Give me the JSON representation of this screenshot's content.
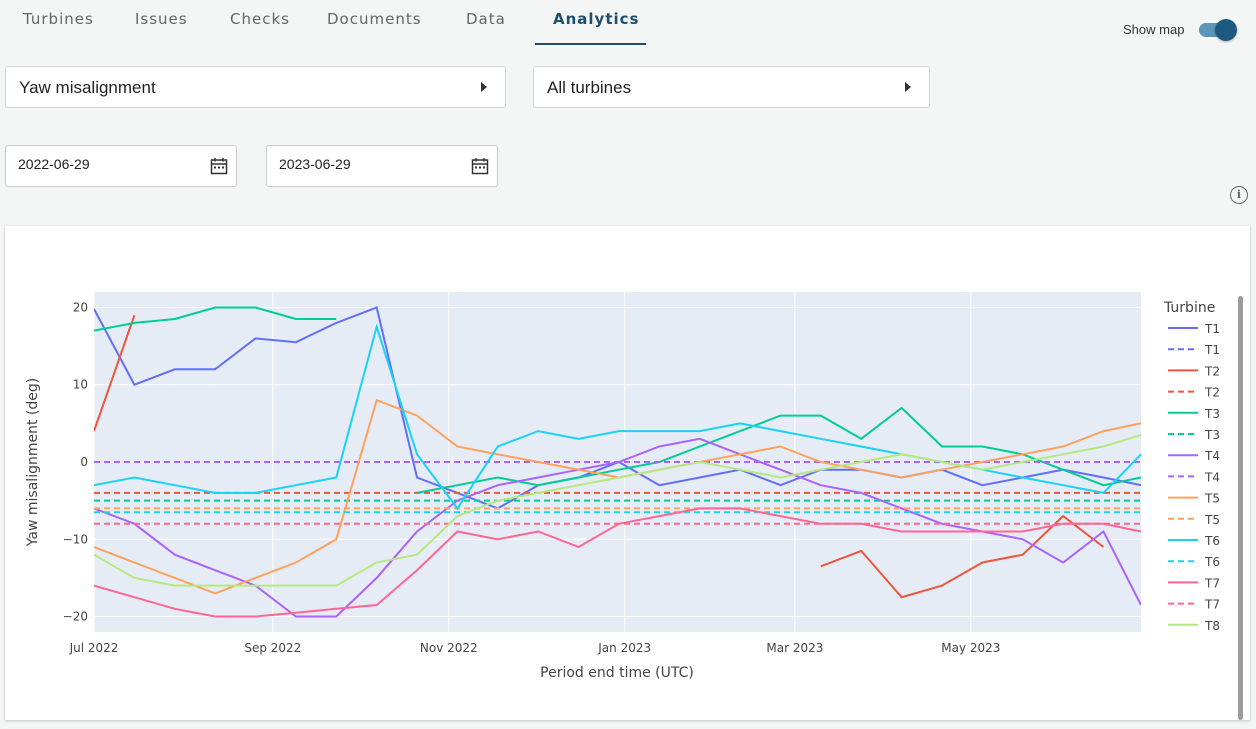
{
  "tabs": [
    {
      "label": "Turbines"
    },
    {
      "label": "Issues"
    },
    {
      "label": "Checks"
    },
    {
      "label": "Documents"
    },
    {
      "label": "Data"
    },
    {
      "label": "Analytics"
    }
  ],
  "active_tab": "Analytics",
  "show_map": {
    "label": "Show map",
    "on": true
  },
  "metric_select": {
    "value": "Yaw misalignment"
  },
  "turbine_select": {
    "value": "All turbines"
  },
  "date_from": "2022-06-29",
  "date_to": "2023-06-29",
  "colors": {
    "accent": "#1e4f6e",
    "plot_bg": "#e5ecf6"
  },
  "chart_data": {
    "type": "line",
    "xlabel": "Period end time (UTC)",
    "ylabel": "Yaw misalignment (deg)",
    "x_ticks": [
      "Jul 2022",
      "Sep 2022",
      "Nov 2022",
      "Jan 2023",
      "Mar 2023",
      "May 2023"
    ],
    "y_ticks": [
      "20",
      "10",
      "0",
      "−10",
      "−20"
    ],
    "ylim": [
      -22,
      22
    ],
    "xlim": [
      "2022-07-01",
      "2023-06-29"
    ],
    "legend_title": "Turbine",
    "legend_position": "right",
    "x": [
      "2022-07-01",
      "2022-07-15",
      "2022-07-29",
      "2022-08-12",
      "2022-08-26",
      "2022-09-09",
      "2022-09-23",
      "2022-10-07",
      "2022-10-21",
      "2022-11-04",
      "2022-11-18",
      "2022-12-02",
      "2022-12-16",
      "2022-12-30",
      "2023-01-13",
      "2023-01-27",
      "2023-02-10",
      "2023-02-24",
      "2023-03-10",
      "2023-03-24",
      "2023-04-07",
      "2023-04-21",
      "2023-05-05",
      "2023-05-19",
      "2023-06-02",
      "2023-06-16",
      "2023-06-29"
    ],
    "series": [
      {
        "name": "T1",
        "dash": "solid",
        "color": "#636efa",
        "values": [
          19.8,
          10,
          12,
          12,
          16,
          15.5,
          18,
          20,
          -2,
          -4,
          -6,
          -3,
          -2,
          0,
          -3,
          -2,
          -1,
          -3,
          -1,
          -1,
          -2,
          -1,
          -3,
          -2,
          -1,
          -2,
          -3
        ]
      },
      {
        "name": "T1",
        "dash": "dash",
        "color": "#636efa",
        "values": [
          0,
          0,
          0,
          0,
          0,
          0,
          0,
          0,
          0,
          0,
          0,
          0,
          0,
          0,
          0,
          0,
          0,
          0,
          0,
          0,
          0,
          0,
          0,
          0,
          0,
          0,
          0
        ]
      },
      {
        "name": "T2",
        "dash": "solid",
        "color": "#ef553b",
        "values": [
          4,
          19,
          null,
          null,
          null,
          null,
          null,
          null,
          null,
          null,
          null,
          null,
          null,
          null,
          null,
          null,
          null,
          null,
          -13.5,
          -11.5,
          -17.5,
          -16,
          -13,
          -12,
          -7,
          -11,
          null
        ]
      },
      {
        "name": "T2",
        "dash": "dash",
        "color": "#ef553b",
        "values": [
          -4,
          -4,
          -4,
          -4,
          -4,
          -4,
          -4,
          -4,
          -4,
          -4,
          -4,
          -4,
          -4,
          -4,
          -4,
          -4,
          -4,
          -4,
          -4,
          -4,
          -4,
          -4,
          -4,
          -4,
          -4,
          -4,
          -4
        ]
      },
      {
        "name": "T3",
        "dash": "solid",
        "color": "#00cc96",
        "values": [
          17,
          18,
          18.5,
          20,
          20,
          18.5,
          18.5,
          null,
          -4,
          -3,
          -2,
          -3,
          -2,
          -1,
          0,
          2,
          4,
          6,
          6,
          3,
          7,
          2,
          2,
          1,
          -1,
          -3,
          -2
        ]
      },
      {
        "name": "T3",
        "dash": "dash",
        "color": "#00cc96",
        "values": [
          -5,
          -5,
          -5,
          -5,
          -5,
          -5,
          -5,
          -5,
          -5,
          -5,
          -5,
          -5,
          -5,
          -5,
          -5,
          -5,
          -5,
          -5,
          -5,
          -5,
          -5,
          -5,
          -5,
          -5,
          -5,
          -5,
          -5
        ]
      },
      {
        "name": "T4",
        "dash": "solid",
        "color": "#ab63fa",
        "values": [
          -6,
          -8,
          -12,
          -14,
          -16,
          -20,
          -20,
          -15,
          -9,
          -5,
          -3,
          -2,
          -1,
          0,
          2,
          3,
          1,
          -1,
          -3,
          -4,
          -6,
          -8,
          -9,
          -10,
          -13,
          -9,
          -18.5
        ]
      },
      {
        "name": "T4",
        "dash": "dash",
        "color": "#ab63fa",
        "values": [
          0,
          0,
          0,
          0,
          0,
          0,
          0,
          0,
          0,
          0,
          0,
          0,
          0,
          0,
          0,
          0,
          0,
          0,
          0,
          0,
          0,
          0,
          0,
          0,
          0,
          0,
          0
        ]
      },
      {
        "name": "T5",
        "dash": "solid",
        "color": "#ffa15a",
        "values": [
          -11,
          -13,
          -15,
          -17,
          -15,
          -13,
          -10,
          8,
          6,
          2,
          1,
          0,
          -1,
          -2,
          -1,
          0,
          1,
          2,
          0,
          -1,
          -2,
          -1,
          0,
          1,
          2,
          4,
          5
        ]
      },
      {
        "name": "T5",
        "dash": "dash",
        "color": "#ffa15a",
        "values": [
          -6,
          -6,
          -6,
          -6,
          -6,
          -6,
          -6,
          -6,
          -6,
          -6,
          -6,
          -6,
          -6,
          -6,
          -6,
          -6,
          -6,
          -6,
          -6,
          -6,
          -6,
          -6,
          -6,
          -6,
          -6,
          -6,
          -6
        ]
      },
      {
        "name": "T6",
        "dash": "solid",
        "color": "#19d3f3",
        "values": [
          -3,
          -2,
          -3,
          -4,
          -4,
          -3,
          -2,
          17.5,
          1,
          -6,
          2,
          4,
          3,
          4,
          4,
          4,
          5,
          4,
          3,
          2,
          1,
          0,
          -1,
          -2,
          -3,
          -4,
          1
        ]
      },
      {
        "name": "T6",
        "dash": "dash",
        "color": "#19d3f3",
        "values": [
          -6.5,
          -6.5,
          -6.5,
          -6.5,
          -6.5,
          -6.5,
          -6.5,
          -6.5,
          -6.5,
          -6.5,
          -6.5,
          -6.5,
          -6.5,
          -6.5,
          -6.5,
          -6.5,
          -6.5,
          -6.5,
          -6.5,
          -6.5,
          -6.5,
          -6.5,
          -6.5,
          -6.5,
          -6.5,
          -6.5,
          -6.5
        ]
      },
      {
        "name": "T7",
        "dash": "solid",
        "color": "#ff6692",
        "values": [
          -16,
          -17.5,
          -19,
          -20,
          -20,
          -19.5,
          -19,
          -18.5,
          -14,
          -9,
          -10,
          -9,
          -11,
          -8,
          -7,
          -6,
          -6,
          -7,
          -8,
          -8,
          -9,
          -9,
          -9,
          -9,
          -8,
          -8,
          -9
        ]
      },
      {
        "name": "T7",
        "dash": "dash",
        "color": "#ff6692",
        "values": [
          -8,
          -8,
          -8,
          -8,
          -8,
          -8,
          -8,
          -8,
          -8,
          -8,
          -8,
          -8,
          -8,
          -8,
          -8,
          -8,
          -8,
          -8,
          -8,
          -8,
          -8,
          -8,
          -8,
          -8,
          -8,
          -8,
          -8
        ]
      },
      {
        "name": "T8",
        "dash": "solid",
        "color": "#b6e880",
        "values": [
          -12,
          -15,
          -16,
          -16,
          -16,
          -16,
          -16,
          -13,
          -12,
          -7,
          -5,
          -4,
          -3,
          -2,
          -1,
          0,
          -1,
          -2,
          -1,
          0,
          1,
          0,
          -1,
          0,
          1,
          2,
          3.5
        ]
      }
    ]
  }
}
